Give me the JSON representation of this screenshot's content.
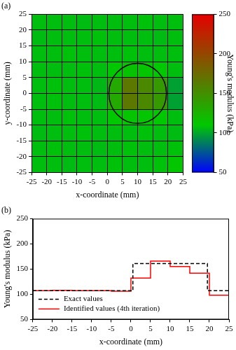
{
  "chart_data": [
    {
      "type": "heatmap",
      "title": "(a)",
      "x_label": "x-coordinate (mm)",
      "y_label": "y-coordinate (mm)",
      "xlim": [
        -25,
        25
      ],
      "xticks": [
        -25,
        -20,
        -15,
        -10,
        -5,
        0,
        5,
        10,
        15,
        20,
        25
      ],
      "ylim": [
        -25,
        25
      ],
      "yticks": [
        -25,
        -20,
        -15,
        -10,
        -5,
        0,
        5,
        10,
        15,
        20,
        25
      ],
      "grid": true,
      "x_edges": [
        -25,
        -20,
        -15,
        -10,
        -5,
        0,
        5,
        10,
        15,
        20,
        25
      ],
      "y_edges": [
        -25,
        -20,
        -15,
        -10,
        -5,
        0,
        5,
        10,
        15,
        20,
        25
      ],
      "cells": [
        [
          107,
          107,
          106,
          107,
          107,
          108,
          107,
          107,
          108,
          112
        ],
        [
          107,
          108,
          107,
          107,
          106,
          107,
          108,
          107,
          107,
          108
        ],
        [
          106,
          107,
          107,
          108,
          107,
          107,
          107,
          108,
          107,
          106
        ],
        [
          107,
          107,
          108,
          107,
          107,
          110,
          113,
          112,
          110,
          107
        ],
        [
          107,
          108,
          107,
          107,
          106,
          132,
          166,
          155,
          142,
          98
        ],
        [
          107,
          108,
          107,
          107,
          105,
          132,
          166,
          155,
          142,
          98
        ],
        [
          107,
          107,
          107,
          108,
          107,
          110,
          114,
          113,
          110,
          107
        ],
        [
          107,
          107,
          108,
          107,
          107,
          107,
          108,
          107,
          107,
          107
        ],
        [
          106,
          107,
          107,
          107,
          108,
          107,
          107,
          107,
          106,
          107
        ],
        [
          107,
          107,
          107,
          106,
          107,
          107,
          107,
          108,
          107,
          107
        ]
      ],
      "colorbar": {
        "label": "Young's modulus (kPa)",
        "range": [
          50,
          250
        ],
        "ticks": [
          50,
          100,
          150,
          200,
          250
        ]
      },
      "circle": {
        "center": [
          10,
          0
        ],
        "radius": 9.5,
        "color": "#000000"
      }
    },
    {
      "type": "line",
      "title": "(b)",
      "x_label": "x-coordinate (mm)",
      "y_label": "Young's modulus (kPa)",
      "xlim": [
        -25,
        25
      ],
      "xticks": [
        -25,
        -20,
        -15,
        -10,
        -5,
        0,
        5,
        10,
        15,
        20,
        25
      ],
      "ylim": [
        50,
        250
      ],
      "yticks": [
        50,
        100,
        150,
        200,
        250
      ],
      "grid": false,
      "legend": "lower left",
      "series": [
        {
          "name": "Exact values",
          "color": "#000000",
          "line_style": "dashed",
          "x": [
            -25,
            0.5,
            0.5,
            19.5,
            19.5,
            25
          ],
          "values": [
            107,
            107,
            161,
            161,
            107,
            107
          ]
        },
        {
          "name": "Identified values (4th iteration)",
          "color": "#ff0000",
          "line_style": "solid",
          "x": [
            -25,
            -20,
            -20,
            -15,
            -15,
            -10,
            -10,
            -5,
            -5,
            0,
            0,
            5,
            5,
            10,
            10,
            15,
            15,
            20,
            20,
            25
          ],
          "values": [
            107,
            107,
            108,
            108,
            107,
            107,
            107,
            107,
            106,
            106,
            132,
            132,
            166,
            166,
            155,
            155,
            142,
            142,
            98,
            98
          ]
        }
      ]
    }
  ]
}
